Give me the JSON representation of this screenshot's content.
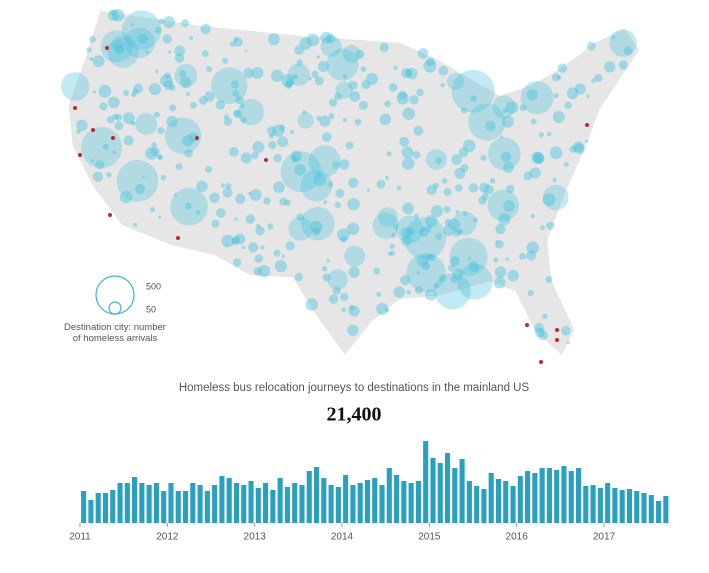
{
  "map": {
    "legend": {
      "title": "Destination city: number of homeless arrivals",
      "sizes": [
        500,
        50
      ]
    }
  },
  "chart_data": {
    "type": "bar",
    "title": "Homeless bus relocation journeys to destinations in the mainland US",
    "total": "21,400",
    "color": "#2aa0c0",
    "ylim": [
      0,
      90
    ],
    "xticks": [
      {
        "value": 0,
        "label": "2011"
      },
      {
        "value": 12,
        "label": "2012"
      },
      {
        "value": 24,
        "label": "2013"
      },
      {
        "value": 36,
        "label": "2014"
      },
      {
        "value": 48,
        "label": "2015"
      },
      {
        "value": 60,
        "label": "2016"
      },
      {
        "value": 72,
        "label": "2017"
      }
    ],
    "values": [
      32,
      23,
      30,
      30,
      33,
      40,
      40,
      46,
      40,
      38,
      40,
      32,
      40,
      32,
      32,
      40,
      38,
      32,
      38,
      47,
      45,
      40,
      38,
      42,
      35,
      40,
      33,
      45,
      36,
      40,
      38,
      52,
      56,
      45,
      38,
      36,
      48,
      38,
      40,
      43,
      45,
      38,
      55,
      48,
      42,
      40,
      42,
      82,
      65,
      60,
      70,
      55,
      64,
      42,
      37,
      34,
      50,
      44,
      42,
      37,
      47,
      52,
      50,
      55,
      55,
      53,
      57,
      52,
      55,
      37,
      38,
      35,
      40,
      35,
      33,
      34,
      32,
      30,
      28,
      22,
      27
    ]
  }
}
